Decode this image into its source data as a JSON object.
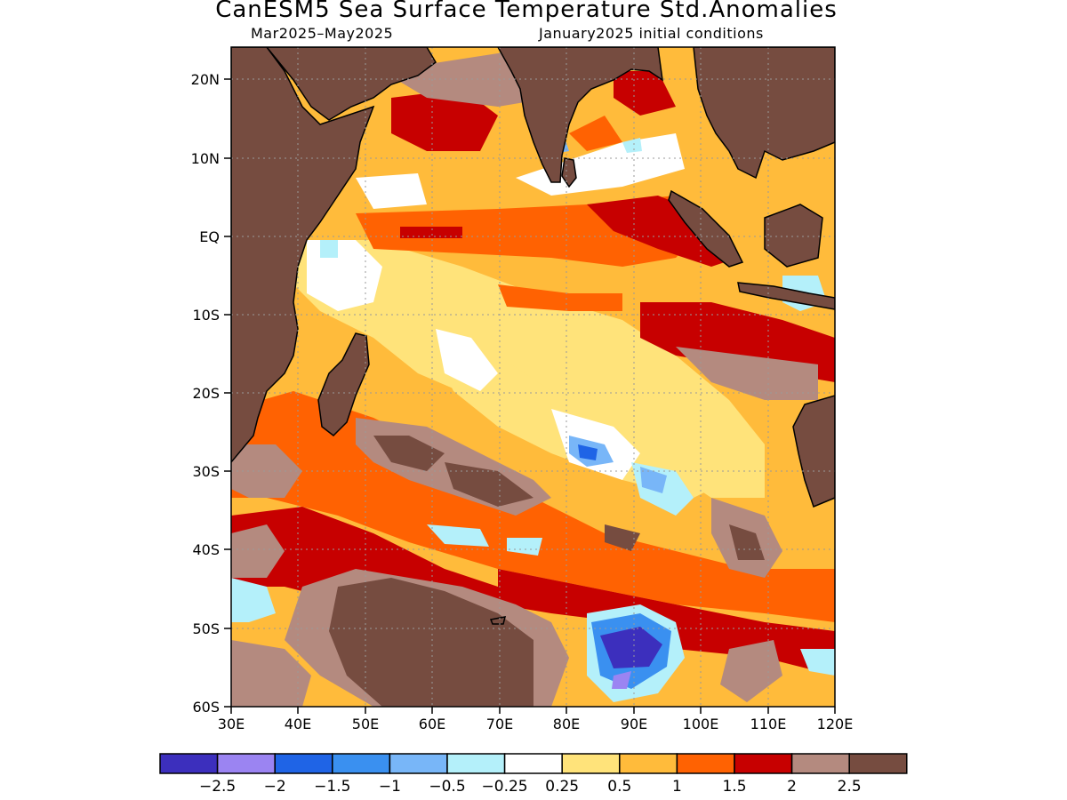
{
  "title": "CanESM5 Sea Surface Temperature Std.Anomalies",
  "subtitle_left": "Mar2025–May2025",
  "subtitle_right": "January2025 initial conditions",
  "lat_labels": [
    "20N",
    "10N",
    "EQ",
    "10S",
    "20S",
    "30S",
    "40S",
    "50S",
    "60S"
  ],
  "lon_labels": [
    "30E",
    "40E",
    "50E",
    "60E",
    "70E",
    "80E",
    "90E",
    "100E",
    "110E",
    "120E"
  ],
  "colorbar": {
    "colors": [
      "#3c2fbd",
      "#9b84f2",
      "#1f64e6",
      "#3a90f0",
      "#78b6f8",
      "#b4f0fa",
      "#ffffff",
      "#ffe37a",
      "#ffbb3b",
      "#ff6202",
      "#c70000",
      "#b48a7f",
      "#764c40"
    ],
    "labels": [
      "−2.5",
      "−2",
      "−1.5",
      "−1",
      "−0.5",
      "−0.25",
      "0.25",
      "0.5",
      "1",
      "1.5",
      "2",
      "2.5"
    ]
  }
}
